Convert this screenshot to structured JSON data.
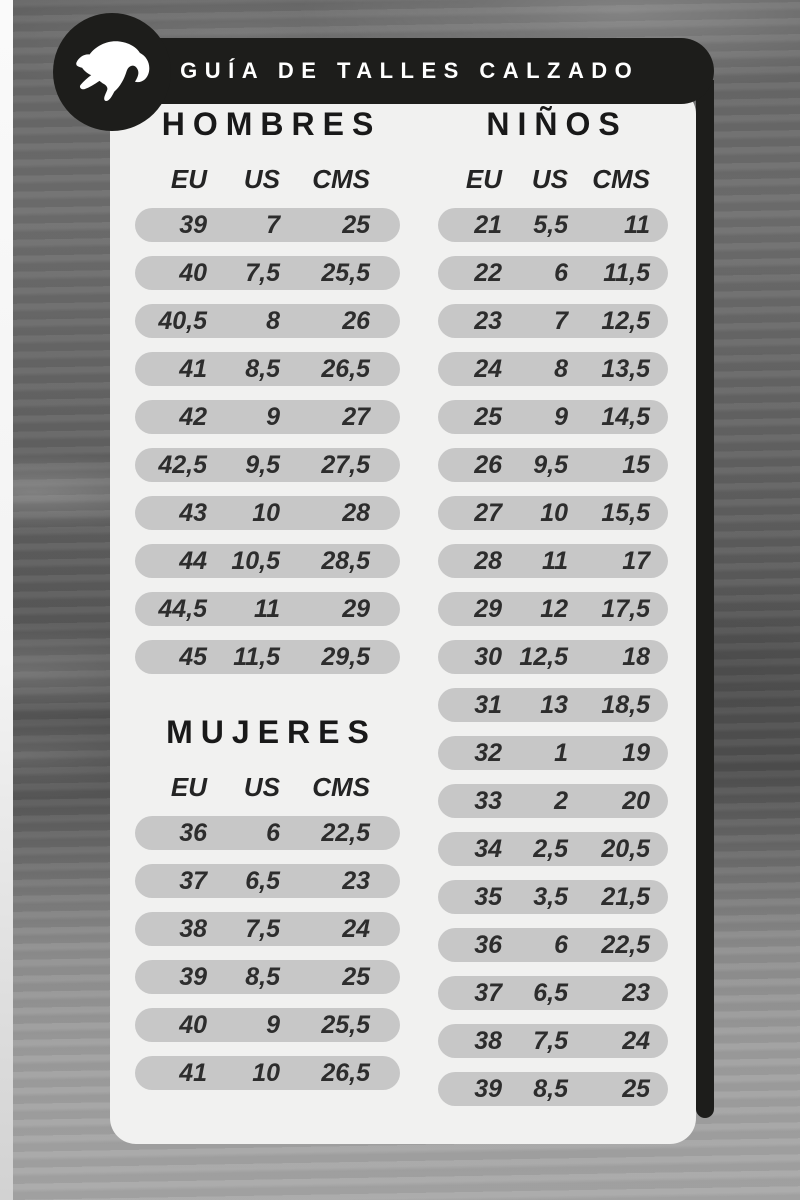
{
  "header": {
    "title": "GUÍA DE TALLES CALZADO",
    "brand_icon": "puma-cat-logo"
  },
  "colors": {
    "black": "#1d1d1b",
    "card": "#f1f1f0",
    "pill": "#c7c7c7",
    "title_text": "#191919",
    "value_text": "#2d2d2d",
    "header_text": "#ffffff"
  },
  "tables": [
    {
      "id": "hombres",
      "title": "HOMBRES",
      "columns": [
        "EU",
        "US",
        "CMS"
      ],
      "rows": [
        [
          "39",
          "7",
          "25"
        ],
        [
          "40",
          "7,5",
          "25,5"
        ],
        [
          "40,5",
          "8",
          "26"
        ],
        [
          "41",
          "8,5",
          "26,5"
        ],
        [
          "42",
          "9",
          "27"
        ],
        [
          "42,5",
          "9,5",
          "27,5"
        ],
        [
          "43",
          "10",
          "28"
        ],
        [
          "44",
          "10,5",
          "28,5"
        ],
        [
          "44,5",
          "11",
          "29"
        ],
        [
          "45",
          "11,5",
          "29,5"
        ]
      ]
    },
    {
      "id": "mujeres",
      "title": "MUJERES",
      "columns": [
        "EU",
        "US",
        "CMS"
      ],
      "rows": [
        [
          "36",
          "6",
          "22,5"
        ],
        [
          "37",
          "6,5",
          "23"
        ],
        [
          "38",
          "7,5",
          "24"
        ],
        [
          "39",
          "8,5",
          "25"
        ],
        [
          "40",
          "9",
          "25,5"
        ],
        [
          "41",
          "10",
          "26,5"
        ]
      ]
    },
    {
      "id": "ninos",
      "title": "NIÑOS",
      "columns": [
        "EU",
        "US",
        "CMS"
      ],
      "rows": [
        [
          "21",
          "5,5",
          "11"
        ],
        [
          "22",
          "6",
          "11,5"
        ],
        [
          "23",
          "7",
          "12,5"
        ],
        [
          "24",
          "8",
          "13,5"
        ],
        [
          "25",
          "9",
          "14,5"
        ],
        [
          "26",
          "9,5",
          "15"
        ],
        [
          "27",
          "10",
          "15,5"
        ],
        [
          "28",
          "11",
          "17"
        ],
        [
          "29",
          "12",
          "17,5"
        ],
        [
          "30",
          "12,5",
          "18"
        ],
        [
          "31",
          "13",
          "18,5"
        ],
        [
          "32",
          "1",
          "19"
        ],
        [
          "33",
          "2",
          "20"
        ],
        [
          "34",
          "2,5",
          "20,5"
        ],
        [
          "35",
          "3,5",
          "21,5"
        ],
        [
          "36",
          "6",
          "22,5"
        ],
        [
          "37",
          "6,5",
          "23"
        ],
        [
          "38",
          "7,5",
          "24"
        ],
        [
          "39",
          "8,5",
          "25"
        ]
      ]
    }
  ]
}
